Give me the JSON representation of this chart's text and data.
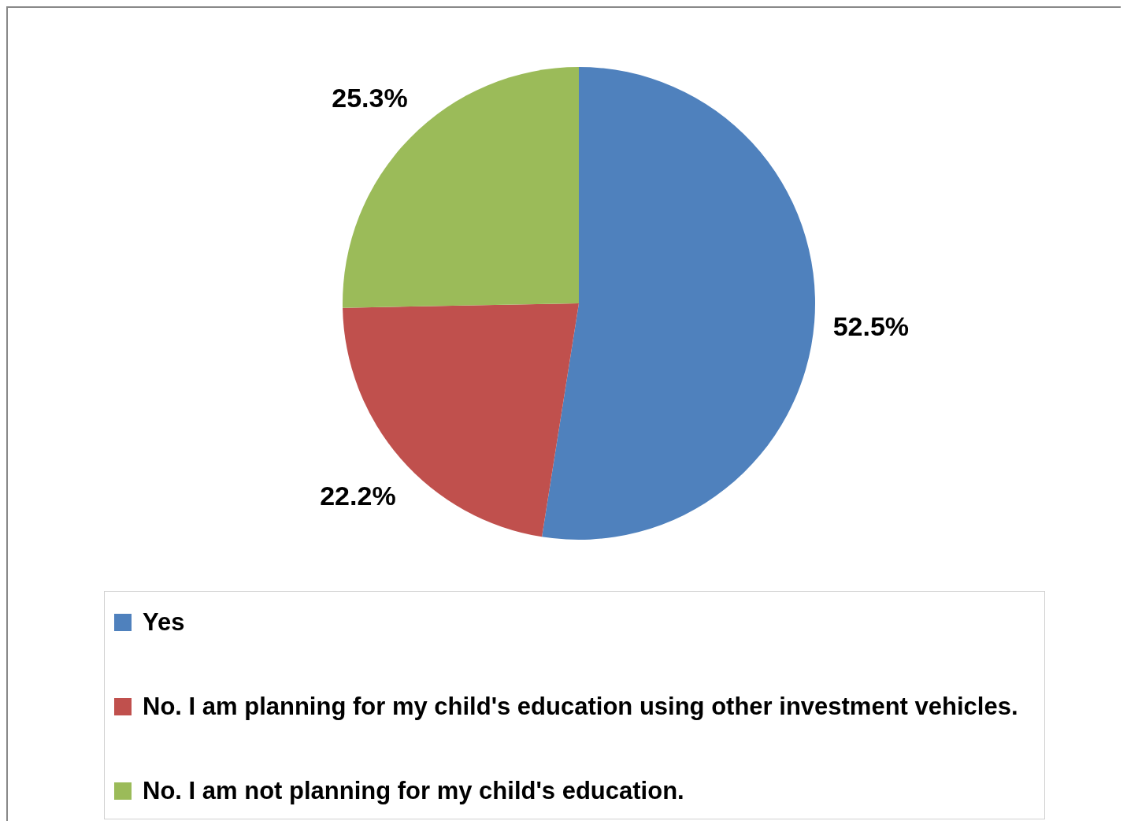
{
  "chart_data": {
    "type": "pie",
    "categories": [
      "Yes",
      "No. I am planning for my child's education using other investment vehicles.",
      "No. I am not planning for my child's education."
    ],
    "values": [
      52.5,
      22.2,
      25.3
    ],
    "colors": [
      "#4f81bd",
      "#c0504d",
      "#9bbb59"
    ],
    "value_labels": [
      "52.5%",
      "22.2%",
      "25.3%"
    ],
    "legend": "bottom"
  }
}
